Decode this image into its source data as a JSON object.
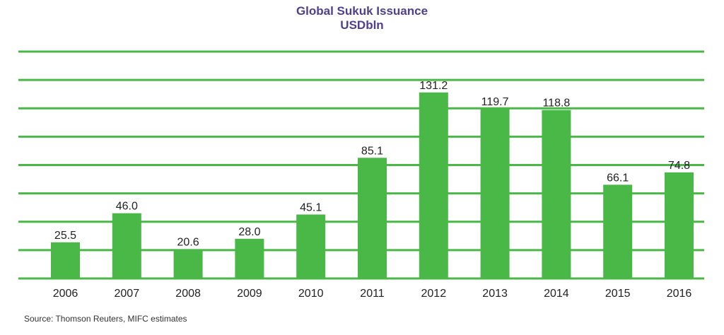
{
  "chart_data": {
    "type": "bar",
    "title": "Global Sukuk Issuance",
    "subtitle": "USDbln",
    "xlabel": "",
    "ylabel": "",
    "categories": [
      "2006",
      "2007",
      "2008",
      "2009",
      "2010",
      "2011",
      "2012",
      "2013",
      "2014",
      "2015",
      "2016"
    ],
    "values": [
      25.5,
      46.0,
      20.6,
      28.0,
      45.1,
      85.1,
      131.2,
      119.7,
      118.8,
      66.1,
      74.8
    ],
    "value_labels": [
      "25.5",
      "46.0",
      "20.6",
      "28.0",
      "45.1",
      "85.1",
      "131.2",
      "119.7",
      "118.8",
      "66.1",
      "74.8"
    ],
    "ylim": [
      0,
      160
    ],
    "ytick_step": 20,
    "grid": true,
    "legend": "none",
    "colors": {
      "bar": "#4ab847",
      "grid": "#4ab847",
      "title": "#4f3f8f"
    }
  },
  "source": "Source: Thomson Reuters, MIFC estimates"
}
